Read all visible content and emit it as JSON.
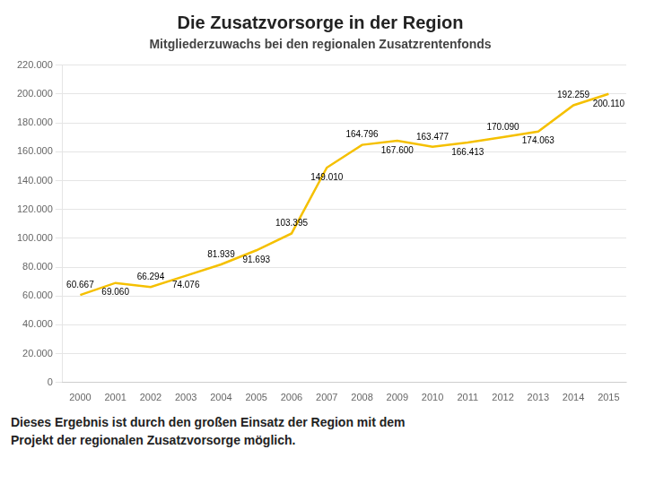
{
  "chart_data": {
    "type": "line",
    "title": "Die Zusatzvorsorge in der Region",
    "subtitle": "Mitgliederzuwachs bei den regionalen Zusatzrentenfonds",
    "annotations": [
      "Dieses Ergebnis ist durch den großen Einsatz der Region mit dem\nProjekt der regionalen Zusatzvorsorge möglich."
    ],
    "categories": [
      "2000",
      "2001",
      "2002",
      "2003",
      "2004",
      "2005",
      "2006",
      "2007",
      "2008",
      "2009",
      "2010",
      "2011",
      "2012",
      "2013",
      "2014",
      "2015"
    ],
    "values": [
      60667,
      69060,
      66294,
      74076,
      81939,
      91693,
      103395,
      149010,
      164796,
      167600,
      163477,
      166413,
      170090,
      174063,
      192259,
      200110
    ],
    "value_labels": [
      "60.667",
      "69.060",
      "66.294",
      "74.076",
      "81.939",
      "91.693",
      "103.395",
      "149.010",
      "164.796",
      "167.600",
      "163.477",
      "166.413",
      "170.090",
      "174.063",
      "192.259",
      "200.110"
    ],
    "color": "#F5C000",
    "ylim": [
      0,
      220000
    ],
    "yticks": [
      0,
      {
        "value": 20000,
        "label": "20.000"
      },
      {
        "value": 40000,
        "label": "40.000"
      },
      {
        "value": 60000,
        "label": "60.000"
      },
      {
        "value": 80000,
        "label": "80.000"
      },
      {
        "value": 100000,
        "label": "100.000"
      },
      {
        "value": 120000,
        "label": "120.000"
      },
      {
        "value": 140000,
        "label": "140.000"
      },
      {
        "value": 160000,
        "label": "160.000"
      },
      {
        "value": 180000,
        "label": "180.000"
      },
      {
        "value": 200000,
        "label": "200.000"
      },
      {
        "value": 220000,
        "label": "220.000"
      }
    ],
    "grid": true,
    "data_labels": true
  }
}
